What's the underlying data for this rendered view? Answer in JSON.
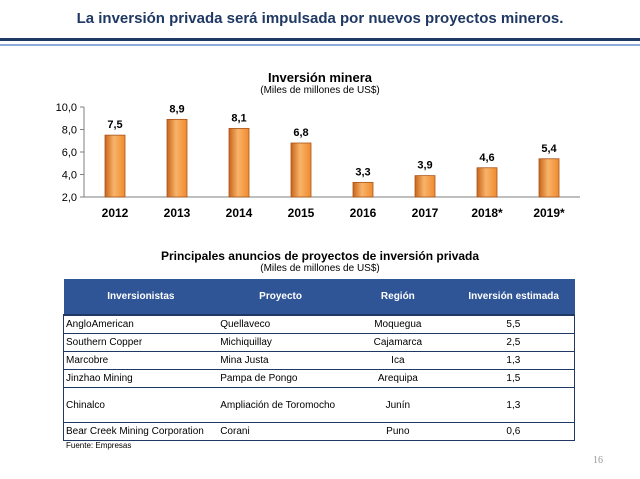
{
  "slide": {
    "title": "La inversión privada será impulsada por nuevos proyectos mineros.",
    "page_number": "16"
  },
  "chart_data": {
    "type": "bar",
    "title": "Inversión minera",
    "subtitle": "(Miles de millones de US$)",
    "categories": [
      "2012",
      "2013",
      "2014",
      "2015",
      "2016",
      "2017",
      "2018*",
      "2019*"
    ],
    "values": [
      7.5,
      8.9,
      8.1,
      6.8,
      3.3,
      3.9,
      4.6,
      5.4
    ],
    "value_labels": [
      "7,5",
      "8,9",
      "8,1",
      "6,8",
      "3,3",
      "3,9",
      "4,6",
      "5,4"
    ],
    "ylim": [
      2.0,
      10.0
    ],
    "yticks": [
      2.0,
      4.0,
      6.0,
      8.0,
      10.0
    ],
    "ytick_labels": [
      "2,0",
      "4,0",
      "6,0",
      "8,0",
      "10,0"
    ],
    "xlabel": "",
    "ylabel": "",
    "grid": false,
    "colors": {
      "bar": "#f08a2c",
      "bar_light": "#f8b46a",
      "bar_dark": "#c8641a",
      "bar_border": "#a9541a"
    }
  },
  "table": {
    "title": "Principales anuncios de proyectos de inversión privada",
    "subtitle": "(Miles de millones de US$)",
    "headers": [
      "Inversionistas",
      "Proyecto",
      "Región",
      "Inversión estimada"
    ],
    "rows": [
      [
        "AngloAmerican",
        "Quellaveco",
        "Moquegua",
        "5,5"
      ],
      [
        "Southern Copper",
        "Michiquillay",
        "Cajamarca",
        "2,5"
      ],
      [
        "Marcobre",
        "Mina Justa",
        "Ica",
        "1,3"
      ],
      [
        "Jinzhao Mining",
        "Pampa de Pongo",
        "Arequipa",
        "1,5"
      ],
      [
        "Chinalco",
        "Ampliación de Toromocho",
        "Junín",
        "1,3"
      ],
      [
        "Bear Creek Mining Corporation",
        "Corani",
        "Puno",
        "0,6"
      ]
    ],
    "footnote": "Fuente: Empresas"
  },
  "colors": {
    "title": "#1f3864",
    "header_bg": "#2f5597",
    "rule": "#1f3864",
    "rule_light": "#8eaadb"
  }
}
